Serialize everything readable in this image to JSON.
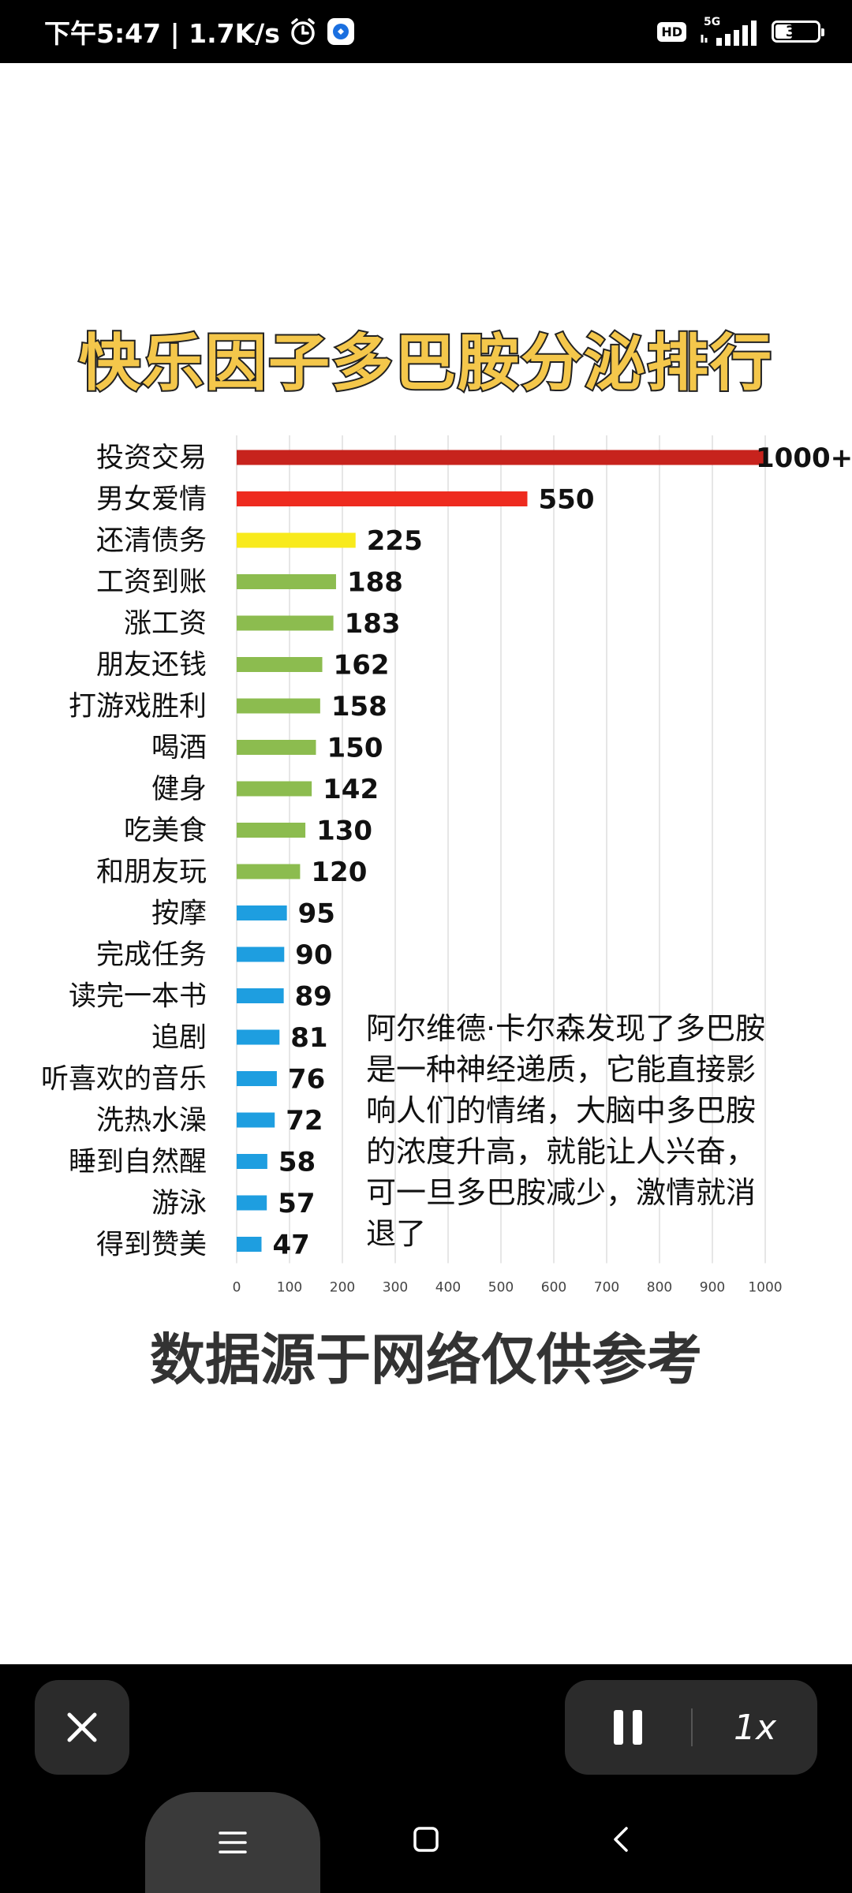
{
  "status_bar": {
    "time_and_speed": "下午5:47 | 1.7K/s",
    "hd_label": "HD",
    "network_label": "5G",
    "battery_level": "38",
    "icons": [
      "alarm-icon",
      "app-notification-icon",
      "signal-icon",
      "battery-icon"
    ]
  },
  "image_title": "快乐因子多巴胺分泌排行",
  "annotation": "阿尔维德·卡尔森发现了多巴胺是一种神经递质，它能直接影响人们的情绪，大脑中多巴胺的浓度升高，就能让人兴奋，可一旦多巴胺减少，激情就消退了",
  "footer_note": "数据源于网络仅供参考",
  "chart_data": {
    "type": "bar",
    "orientation": "horizontal",
    "title": "快乐因子多巴胺分泌排行",
    "xlabel": "",
    "ylabel": "",
    "xlim": [
      0,
      1000
    ],
    "xticks": [
      0,
      100,
      200,
      300,
      400,
      500,
      600,
      700,
      800,
      900,
      1000
    ],
    "grid": true,
    "categories": [
      "投资交易",
      "男女爱情",
      "还清债务",
      "工资到账",
      "涨工资",
      "朋友还钱",
      "打游戏胜利",
      "喝酒",
      "健身",
      "吃美食",
      "和朋友玩",
      "按摩",
      "完成任务",
      "读完一本书",
      "追剧",
      "听喜欢的音乐",
      "洗热水澡",
      "睡到自然醒",
      "游泳",
      "得到赞美"
    ],
    "values": [
      1000,
      550,
      225,
      188,
      183,
      162,
      158,
      150,
      142,
      130,
      120,
      95,
      90,
      89,
      81,
      76,
      72,
      58,
      57,
      47
    ],
    "value_labels": [
      "1000+",
      "550",
      "225",
      "188",
      "183",
      "162",
      "158",
      "150",
      "142",
      "130",
      "120",
      "95",
      "90",
      "89",
      "81",
      "76",
      "72",
      "58",
      "57",
      "47"
    ],
    "bar_colors": [
      "#c7231d",
      "#ee2b1f",
      "#f8ea1c",
      "#8cbc4f",
      "#8cbc4f",
      "#8cbc4f",
      "#8cbc4f",
      "#8cbc4f",
      "#8cbc4f",
      "#8cbc4f",
      "#8cbc4f",
      "#1e9ee0",
      "#1e9ee0",
      "#1e9ee0",
      "#1e9ee0",
      "#1e9ee0",
      "#1e9ee0",
      "#1e9ee0",
      "#1e9ee0",
      "#1e9ee0"
    ]
  },
  "player": {
    "close_icon": "close-icon",
    "pause_icon": "pause-icon",
    "speed_label": "1x"
  },
  "nav_bar": {
    "icons": [
      "menu-icon",
      "home-icon",
      "back-icon"
    ]
  }
}
